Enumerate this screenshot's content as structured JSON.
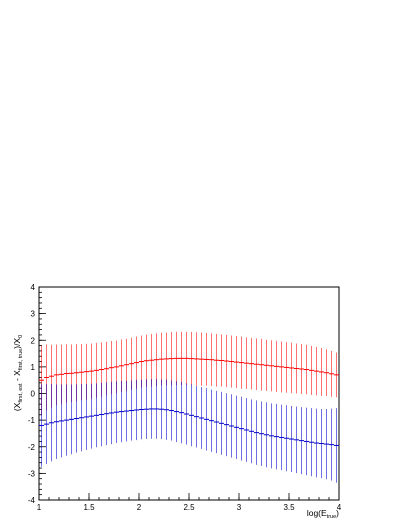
{
  "chart_data": {
    "type": "scatter",
    "title": "",
    "xlabel": {
      "main": "log(E",
      "sub": "true",
      "close": ")"
    },
    "ylabel": {
      "p1": "(X",
      "s1": "first, est",
      "p2": " - X",
      "s2": "first, true",
      "p3": ")/X",
      "s3": "0"
    },
    "xlim": [
      1,
      4
    ],
    "ylim": [
      -4,
      4
    ],
    "x_ticks": [
      1,
      1.5,
      2,
      2.5,
      3,
      3.5,
      4
    ],
    "x_tick_labels": [
      "1",
      "1.5",
      "2",
      "2.5",
      "3",
      "3.5",
      "4"
    ],
    "y_ticks": [
      -4,
      -3,
      -2,
      -1,
      0,
      1,
      2,
      3,
      4
    ],
    "y_tick_labels": [
      "-4",
      "-3",
      "-2",
      "-1",
      "0",
      "1",
      "2",
      "3",
      "4"
    ],
    "grid": false,
    "legend": "none",
    "bin_width": 0.05,
    "x": [
      1.025,
      1.075,
      1.125,
      1.175,
      1.225,
      1.275,
      1.325,
      1.375,
      1.425,
      1.475,
      1.525,
      1.575,
      1.625,
      1.675,
      1.725,
      1.775,
      1.825,
      1.875,
      1.925,
      1.975,
      2.025,
      2.075,
      2.125,
      2.175,
      2.225,
      2.275,
      2.325,
      2.375,
      2.425,
      2.475,
      2.525,
      2.575,
      2.625,
      2.675,
      2.725,
      2.775,
      2.825,
      2.875,
      2.925,
      2.975,
      3.025,
      3.075,
      3.125,
      3.175,
      3.225,
      3.275,
      3.325,
      3.375,
      3.425,
      3.475,
      3.525,
      3.575,
      3.625,
      3.675,
      3.725,
      3.775,
      3.825,
      3.875,
      3.925,
      3.975
    ],
    "series": [
      {
        "color": "#ff0000",
        "y": [
          0.5,
          0.6,
          0.65,
          0.7,
          0.72,
          0.75,
          0.76,
          0.78,
          0.8,
          0.82,
          0.84,
          0.87,
          0.9,
          0.93,
          0.97,
          1.0,
          1.04,
          1.08,
          1.12,
          1.16,
          1.2,
          1.23,
          1.25,
          1.27,
          1.29,
          1.3,
          1.31,
          1.32,
          1.32,
          1.32,
          1.31,
          1.3,
          1.29,
          1.28,
          1.27,
          1.25,
          1.24,
          1.22,
          1.2,
          1.18,
          1.16,
          1.14,
          1.12,
          1.1,
          1.08,
          1.06,
          1.04,
          1.02,
          1.0,
          0.98,
          0.96,
          0.94,
          0.92,
          0.9,
          0.87,
          0.84,
          0.81,
          0.78,
          0.74,
          0.7
        ],
        "err": [
          1.3,
          1.25,
          1.18,
          1.14,
          1.12,
          1.1,
          1.08,
          1.07,
          1.06,
          1.05,
          1.04,
          1.03,
          1.02,
          1.01,
          1.0,
          0.99,
          0.99,
          0.98,
          0.98,
          0.98,
          0.98,
          0.98,
          0.99,
          0.99,
          0.99,
          0.99,
          1.0,
          1.0,
          1.0,
          1.0,
          1.0,
          1.0,
          1.0,
          0.99,
          0.99,
          0.99,
          0.98,
          0.98,
          0.98,
          0.98,
          0.98,
          0.97,
          0.97,
          0.97,
          0.97,
          0.96,
          0.96,
          0.96,
          0.96,
          0.95,
          0.95,
          0.94,
          0.94,
          0.93,
          0.92,
          0.91,
          0.9,
          0.88,
          0.86,
          0.84
        ]
      },
      {
        "color": "#0000cc",
        "y": [
          -1.2,
          -1.15,
          -1.1,
          -1.06,
          -1.03,
          -1.0,
          -0.97,
          -0.94,
          -0.91,
          -0.88,
          -0.85,
          -0.82,
          -0.79,
          -0.76,
          -0.73,
          -0.7,
          -0.68,
          -0.66,
          -0.64,
          -0.62,
          -0.6,
          -0.59,
          -0.58,
          -0.58,
          -0.59,
          -0.61,
          -0.64,
          -0.68,
          -0.72,
          -0.77,
          -0.82,
          -0.87,
          -0.92,
          -0.97,
          -1.02,
          -1.07,
          -1.12,
          -1.17,
          -1.22,
          -1.27,
          -1.32,
          -1.37,
          -1.42,
          -1.47,
          -1.51,
          -1.55,
          -1.59,
          -1.62,
          -1.65,
          -1.68,
          -1.71,
          -1.74,
          -1.77,
          -1.8,
          -1.83,
          -1.86,
          -1.88,
          -1.9,
          -1.92,
          -1.95
        ],
        "err": [
          1.55,
          1.5,
          1.45,
          1.4,
          1.37,
          1.34,
          1.31,
          1.28,
          1.26,
          1.24,
          1.22,
          1.2,
          1.19,
          1.18,
          1.17,
          1.16,
          1.15,
          1.14,
          1.13,
          1.13,
          1.12,
          1.12,
          1.12,
          1.12,
          1.12,
          1.13,
          1.13,
          1.14,
          1.15,
          1.15,
          1.16,
          1.16,
          1.16,
          1.17,
          1.17,
          1.17,
          1.18,
          1.18,
          1.19,
          1.19,
          1.2,
          1.2,
          1.2,
          1.21,
          1.21,
          1.22,
          1.22,
          1.23,
          1.23,
          1.24,
          1.24,
          1.25,
          1.26,
          1.27,
          1.28,
          1.29,
          1.3,
          1.32,
          1.35,
          1.4
        ]
      }
    ]
  }
}
